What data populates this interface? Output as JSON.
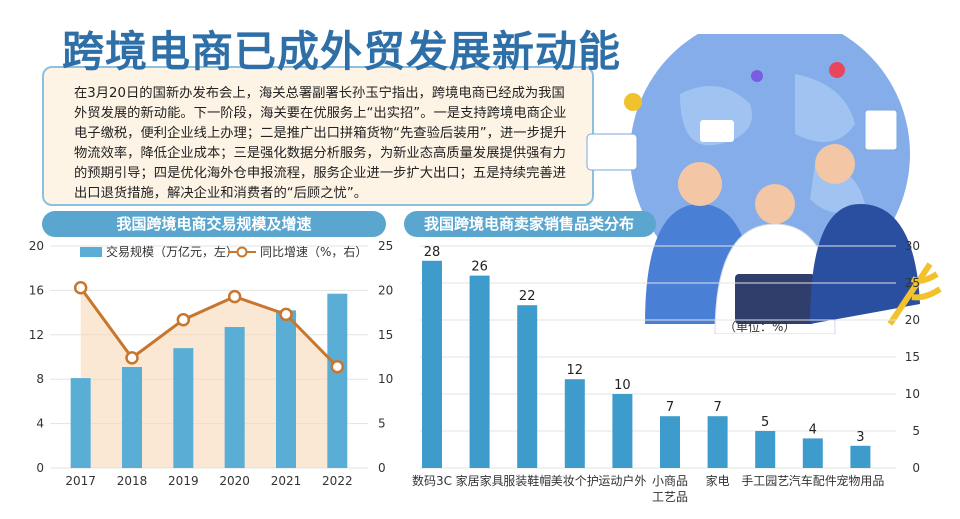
{
  "title": "跨境电商已成外贸发展新动能",
  "intro": "在3月20日的国新办发布会上，海关总署副署长孙玉宁指出，跨境电商已经成为我国外贸发展的新动能。下一阶段，海关要在优服务上“出实招”。一是支持跨境电商企业电子缴税，便利企业线上办理；二是推广出口拼箱货物“先查验后装用”，进一步提升物流效率，降低企业成本；三是强化数据分析服务，为新业态高质量发展提供强有力的预期引导；四是优化海外仓申报流程，服务企业进一步扩大出口；五是持续完善进出口退货措施，解决企业和消费者的“后顾之忧”。",
  "colors": {
    "bar_left": "#5aaed6",
    "line": "#c8762e",
    "bar_right": "#3d9ccb",
    "panel": "#5aa6cf",
    "title": "#2f6fa8"
  },
  "chart_data": [
    {
      "type": "bar",
      "title": "我国跨境电商交易规模及增速",
      "categories": [
        "2017",
        "2018",
        "2019",
        "2020",
        "2021",
        "2022"
      ],
      "series": [
        {
          "name": "交易规模（万亿元，左）",
          "type": "bar",
          "values": [
            8.1,
            9.1,
            10.8,
            12.7,
            14.2,
            15.7
          ]
        },
        {
          "name": "同比增速（%，右）",
          "type": "line",
          "values": [
            20.3,
            12.4,
            16.7,
            19.3,
            17.3,
            11.4
          ]
        }
      ],
      "y_left_ticks": [
        "0",
        "4",
        "8",
        "12",
        "16",
        "20"
      ],
      "y_right_ticks": [
        "0",
        "5",
        "10",
        "15",
        "20",
        "25"
      ],
      "ylim_left": [
        0,
        20
      ],
      "ylim_right": [
        0,
        25
      ],
      "legend": "top"
    },
    {
      "type": "bar",
      "title": "我国跨境电商卖家销售品类分布",
      "unit": "（单位：%）",
      "categories": [
        "数码3C",
        "家居家具",
        "服装鞋帽",
        "美妆个护",
        "运动户外",
        "小商品\n工艺品",
        "家电",
        "手工园艺",
        "汽车配件",
        "宠物用品"
      ],
      "values": [
        28,
        26,
        22,
        12,
        10,
        7,
        7,
        5,
        4,
        3
      ],
      "y_ticks": [
        "0",
        "5",
        "10",
        "15",
        "20",
        "25",
        "30"
      ],
      "ylim": [
        0,
        30
      ]
    }
  ]
}
